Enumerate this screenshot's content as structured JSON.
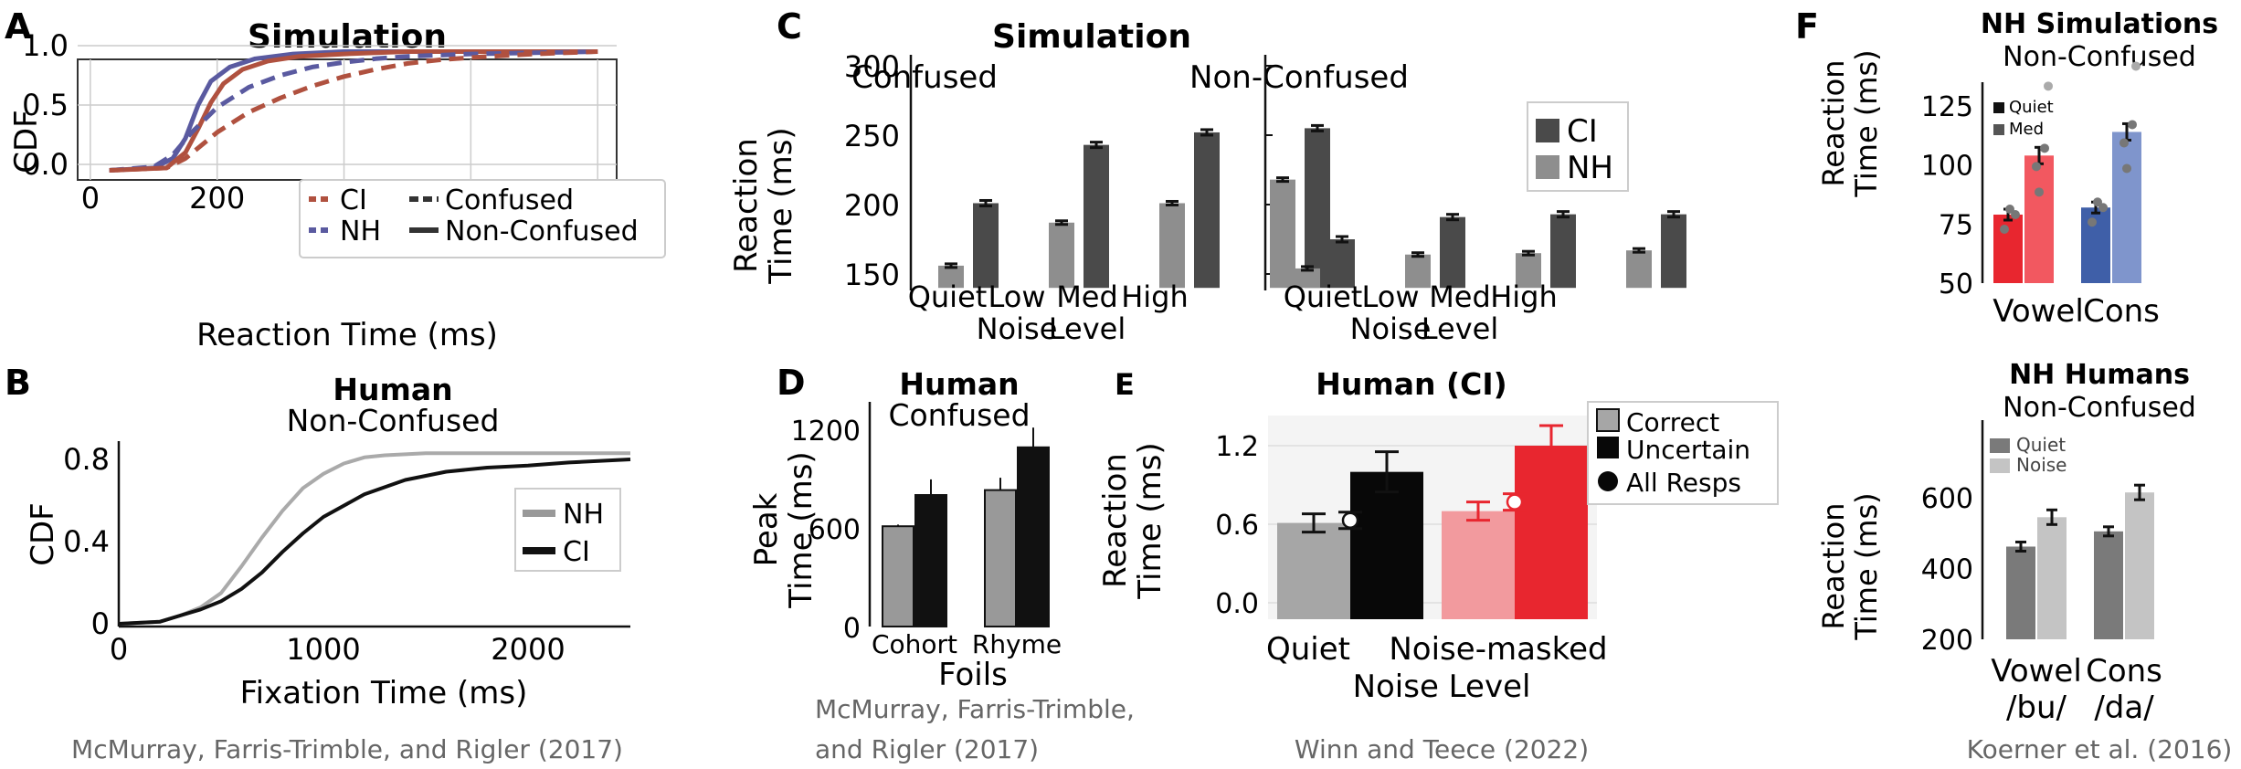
{
  "panels": {
    "A": {
      "letter": "A",
      "title": "Simulation",
      "ylabel": "CDF",
      "xlabel": "Reaction Time (ms)",
      "legend": {
        "ci": "CI",
        "nh": "NH",
        "confused": "Confused",
        "nonconfused": "Non-Confused"
      }
    },
    "B": {
      "letter": "B",
      "title": "Human",
      "subtitle": "Non-Confused",
      "ylabel": "CDF",
      "xlabel": "Fixation Time (ms)",
      "legend": {
        "nh": "NH",
        "ci": "CI"
      },
      "citation": "McMurray, Farris-Trimble, and Rigler (2017)"
    },
    "C": {
      "letter": "C",
      "title": "Simulation",
      "ylabel1": "Reaction",
      "ylabel2": "Time (ms)",
      "left_title": "Confused",
      "right_title": "Non-Confused",
      "legend": {
        "ci": "CI",
        "nh": "NH"
      }
    },
    "D": {
      "letter": "D",
      "title": "Human",
      "subtitle": "Confused",
      "ylabel1": "Peak",
      "ylabel2": "Time (ms)",
      "xlabel": "Foils",
      "citation1": "McMurray, Farris-Trimble,",
      "citation2": "and Rigler (2017)"
    },
    "E": {
      "letter": "E",
      "title": "Human (CI)",
      "ylabel1": "Reaction",
      "ylabel2": "Time (ms)",
      "xlabel": "Noise Level",
      "legend": {
        "correct": "Correct",
        "uncertain": "Uncertain",
        "all": "All Resps"
      },
      "citation": "Winn and Teece (2022)"
    },
    "F": {
      "letter": "F",
      "title_top": "NH Simulations",
      "subtitle_top": "Non-Confused",
      "title_bottom": "NH Humans",
      "subtitle_bottom": "Non-Confused",
      "ylabel1": "Reaction",
      "ylabel2": "Time (ms)",
      "legend_top": {
        "quiet": "Quiet",
        "med": "Med"
      },
      "legend_bottom": {
        "quiet": "Quiet",
        "noise": "Noise"
      },
      "citation": "Koerner et al. (2016)"
    }
  },
  "colors": {
    "ci": "#b0513f",
    "nh": "#5a5aa0",
    "dark": "#4a4a4a",
    "light": "#8e8e8e",
    "red": "#e8262f",
    "pink": "#f29a9e",
    "blue": "#3f5fa8",
    "lightblue": "#7f95cc"
  },
  "chart_data": [
    {
      "panel": "A",
      "type": "line",
      "title": "Simulation",
      "xlabel": "Reaction Time (ms)",
      "ylabel": "CDF",
      "xlim": [
        -20,
        830
      ],
      "ylim": [
        -0.05,
        1.0
      ],
      "xticks": [
        0,
        200,
        400,
        600,
        800
      ],
      "yticks": [
        "0.0",
        "0.5",
        "1.0"
      ],
      "grid": true,
      "legend": "bottom-right",
      "series": [
        {
          "name": "NH",
          "style": "Non-Confused",
          "x": [
            30,
            100,
            130,
            150,
            170,
            190,
            220,
            260,
            320,
            400,
            500,
            600,
            700,
            800
          ],
          "y": [
            -0.05,
            -0.03,
            0.05,
            0.22,
            0.5,
            0.7,
            0.82,
            0.89,
            0.93,
            0.95,
            0.95,
            0.95,
            0.95,
            0.95
          ]
        },
        {
          "name": "CI",
          "style": "Non-Confused",
          "x": [
            30,
            120,
            150,
            170,
            190,
            210,
            240,
            280,
            330,
            400,
            500,
            600,
            700,
            800
          ],
          "y": [
            -0.05,
            -0.03,
            0.1,
            0.3,
            0.52,
            0.68,
            0.8,
            0.87,
            0.91,
            0.93,
            0.95,
            0.95,
            0.95,
            0.95
          ]
        },
        {
          "name": "NH",
          "style": "Confused",
          "x": [
            30,
            100,
            130,
            160,
            200,
            250,
            300,
            350,
            400,
            450,
            500,
            600,
            700,
            800
          ],
          "y": [
            -0.05,
            -0.02,
            0.08,
            0.27,
            0.48,
            0.65,
            0.75,
            0.82,
            0.86,
            0.89,
            0.91,
            0.93,
            0.94,
            0.95
          ]
        },
        {
          "name": "CI",
          "style": "Confused",
          "x": [
            30,
            120,
            150,
            200,
            250,
            300,
            350,
            400,
            450,
            500,
            550,
            600,
            700,
            800
          ],
          "y": [
            -0.05,
            -0.03,
            0.05,
            0.27,
            0.44,
            0.56,
            0.66,
            0.74,
            0.8,
            0.85,
            0.88,
            0.9,
            0.93,
            0.95
          ]
        }
      ]
    },
    {
      "panel": "B",
      "type": "line",
      "title": "Human",
      "subtitle": "Non-Confused",
      "xlabel": "Fixation Time (ms)",
      "ylabel": "CDF",
      "xlim": [
        0,
        2500
      ],
      "ylim": [
        0,
        0.85
      ],
      "xticks": [
        0,
        1000,
        2000
      ],
      "yticks": [
        "0",
        "0.4",
        "0.8"
      ],
      "legend": "middle-right",
      "series": [
        {
          "name": "NH",
          "x": [
            0,
            200,
            300,
            400,
            500,
            600,
            700,
            800,
            900,
            1000,
            1100,
            1200,
            1300,
            1500,
            1700,
            2000,
            2500
          ],
          "y": [
            0,
            0.01,
            0.04,
            0.08,
            0.15,
            0.28,
            0.42,
            0.55,
            0.66,
            0.73,
            0.78,
            0.81,
            0.82,
            0.83,
            0.83,
            0.83,
            0.83
          ]
        },
        {
          "name": "CI",
          "x": [
            0,
            200,
            300,
            400,
            500,
            600,
            700,
            800,
            900,
            1000,
            1200,
            1400,
            1600,
            1800,
            2000,
            2200,
            2500
          ],
          "y": [
            0,
            0.01,
            0.04,
            0.07,
            0.11,
            0.17,
            0.25,
            0.35,
            0.44,
            0.52,
            0.63,
            0.7,
            0.74,
            0.76,
            0.77,
            0.785,
            0.8
          ]
        }
      ]
    },
    {
      "panel": "C",
      "type": "bar",
      "title": "Simulation",
      "ylabel": "Reaction Time (ms)",
      "ylim": [
        140,
        300
      ],
      "yticks": [
        150,
        200,
        250,
        300
      ],
      "categories": [
        "Quiet",
        "Low Noise",
        "Med Level",
        "High"
      ],
      "legend": "top-right",
      "groups": [
        {
          "name": "Confused",
          "series": [
            {
              "name": "NH",
              "values": [
                156,
                187,
                201,
                218
              ]
            },
            {
              "name": "CI",
              "values": [
                201,
                243,
                252,
                255
              ]
            }
          ]
        },
        {
          "name": "Non-Confused",
          "series": [
            {
              "name": "NH",
              "values": [
                154,
                164,
                165,
                167
              ]
            },
            {
              "name": "CI",
              "values": [
                175,
                191,
                193,
                193
              ]
            }
          ]
        }
      ]
    },
    {
      "panel": "D",
      "type": "bar",
      "title": "Human",
      "subtitle": "Confused",
      "ylabel": "Peak Time (ms)",
      "xlabel": "Foils",
      "ylim": [
        0,
        1300
      ],
      "yticks": [
        0,
        600,
        1200
      ],
      "categories": [
        "Cohort",
        "Rhyme"
      ],
      "series": [
        {
          "name": "NH",
          "values": [
            610,
            830
          ]
        },
        {
          "name": "CI",
          "values": [
            800,
            1090
          ]
        }
      ],
      "errors": [
        [
          10,
          75
        ],
        [
          95,
          120
        ]
      ]
    },
    {
      "panel": "E",
      "type": "bar",
      "title": "Human (CI)",
      "ylabel": "Reaction Time (ms)",
      "xlabel": "Noise Level",
      "ylim": [
        -0.2,
        1.4
      ],
      "yticks": [
        "0.0",
        "0.6",
        "1.2"
      ],
      "categories": [
        "Quiet",
        "Noise-masked"
      ],
      "legend": "top-right",
      "series": [
        {
          "name": "Correct",
          "values": [
            0.61,
            0.7
          ]
        },
        {
          "name": "Uncertain",
          "values": [
            1.0,
            1.2
          ]
        }
      ],
      "all_resps": [
        0.63,
        0.77
      ]
    },
    {
      "panel": "F-top",
      "type": "bar",
      "title": "NH Simulations",
      "subtitle": "Non-Confused",
      "ylabel": "Reaction Time (ms)",
      "ylim": [
        50,
        135
      ],
      "yticks": [
        50,
        75,
        100,
        125
      ],
      "categories": [
        "Vowel",
        "Cons"
      ],
      "legend": "top-left",
      "series": [
        {
          "name": "Quiet",
          "values": [
            79,
            82
          ]
        },
        {
          "name": "Med",
          "values": [
            104,
            114
          ]
        }
      ]
    },
    {
      "panel": "F-bottom",
      "type": "bar",
      "title": "NH Humans",
      "subtitle": "Non-Confused",
      "ylabel": "Reaction Time (ms)",
      "ylim": [
        150,
        720
      ],
      "yticks": [
        200,
        400,
        600
      ],
      "categories": [
        "Vowel /bu/",
        "Cons /da/"
      ],
      "legend": "top-left",
      "series": [
        {
          "name": "Quiet",
          "values": [
            462,
            505
          ]
        },
        {
          "name": "Noise",
          "values": [
            545,
            615
          ]
        }
      ]
    }
  ]
}
